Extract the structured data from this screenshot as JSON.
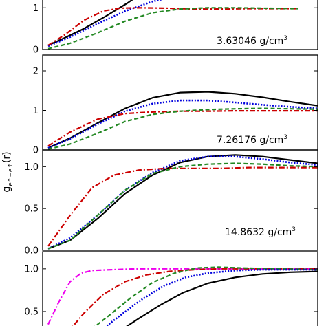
{
  "ylabel": "g",
  "ylabel_sub": "e↑−e↑",
  "ylabel_arg": "(r)",
  "colors": {
    "black": "#000000",
    "blue": "#0000dd",
    "red": "#cc0000",
    "green": "#228822",
    "magenta": "#ee00ee"
  },
  "chart_data": [
    {
      "type": "line",
      "density_label": "3.63046 g/cm",
      "density_sup": "3",
      "ylim": [
        0,
        1.35
      ],
      "xlim": [
        0,
        10
      ],
      "yticks": [
        {
          "v": 0,
          "label": "0"
        },
        {
          "v": 1,
          "label": "1"
        }
      ],
      "series": [
        {
          "color": "black",
          "style": "solid",
          "x": [
            0.2,
            0.8,
            1.5,
            2.3,
            3.1,
            3.6
          ],
          "y": [
            0.1,
            0.28,
            0.5,
            0.8,
            1.12,
            1.35
          ]
        },
        {
          "color": "blue",
          "style": "dotted",
          "x": [
            0.2,
            1.0,
            2.0,
            3.0,
            4.0,
            5.0,
            5.6
          ],
          "y": [
            0.08,
            0.3,
            0.62,
            0.92,
            1.15,
            1.3,
            1.35
          ]
        },
        {
          "color": "red",
          "style": "dashdot",
          "x": [
            0.2,
            0.8,
            1.5,
            2.2,
            2.8,
            3.5,
            4.5,
            5.5,
            6.5,
            7.5,
            8.5,
            9.3
          ],
          "y": [
            0.1,
            0.35,
            0.7,
            0.92,
            0.99,
            1.0,
            0.99,
            0.97,
            0.97,
            0.98,
            0.98,
            0.98
          ]
        },
        {
          "color": "green",
          "style": "dashed",
          "x": [
            0.2,
            1.0,
            2.0,
            3.0,
            4.0,
            5.0,
            6.0,
            7.0,
            8.0,
            9.3
          ],
          "y": [
            0.02,
            0.15,
            0.4,
            0.68,
            0.88,
            0.97,
            1.0,
            1.0,
            0.99,
            0.98
          ]
        }
      ]
    },
    {
      "type": "line",
      "density_label": "7.26176 g/cm",
      "density_sup": "3",
      "ylim": [
        0,
        2.4
      ],
      "xlim": [
        0,
        10
      ],
      "yticks": [
        {
          "v": 0,
          "label": "0"
        },
        {
          "v": 1,
          "label": "1"
        },
        {
          "v": 2,
          "label": "2"
        }
      ],
      "series": [
        {
          "color": "black",
          "style": "solid",
          "x": [
            0.2,
            1.0,
            2.0,
            3.0,
            4.0,
            5.0,
            6.0,
            7.0,
            8.0,
            9.0,
            10.0
          ],
          "y": [
            0.05,
            0.3,
            0.68,
            1.05,
            1.32,
            1.45,
            1.47,
            1.42,
            1.33,
            1.22,
            1.12
          ]
        },
        {
          "color": "blue",
          "style": "dotted",
          "x": [
            0.2,
            1.0,
            2.0,
            3.0,
            4.0,
            5.0,
            6.0,
            7.0,
            8.0,
            9.0,
            10.0
          ],
          "y": [
            0.05,
            0.28,
            0.65,
            0.98,
            1.17,
            1.25,
            1.25,
            1.2,
            1.14,
            1.09,
            1.05
          ]
        },
        {
          "color": "red",
          "style": "dashdot",
          "x": [
            0.2,
            1.0,
            2.0,
            3.0,
            4.0,
            5.0,
            6.0,
            7.0,
            8.0,
            9.0,
            10.0
          ],
          "y": [
            0.1,
            0.45,
            0.78,
            0.92,
            0.96,
            0.98,
            0.98,
            0.99,
            0.99,
            0.99,
            0.99
          ]
        },
        {
          "color": "green",
          "style": "dashed",
          "x": [
            0.2,
            1.0,
            2.0,
            3.0,
            4.0,
            5.0,
            6.0,
            7.0,
            8.0,
            9.0,
            10.0
          ],
          "y": [
            0.02,
            0.15,
            0.42,
            0.72,
            0.9,
            0.98,
            1.02,
            1.04,
            1.05,
            1.04,
            1.03
          ]
        }
      ]
    },
    {
      "type": "line",
      "density_label": "14.8632 g/cm",
      "density_sup": "3",
      "ylim": [
        0,
        1.2
      ],
      "xlim": [
        0,
        10
      ],
      "yticks": [
        {
          "v": 0,
          "label": "0.0"
        },
        {
          "v": 0.5,
          "label": "0.5"
        },
        {
          "v": 1,
          "label": "1.0"
        }
      ],
      "series": [
        {
          "color": "black",
          "style": "solid",
          "x": [
            0.2,
            1.0,
            2.0,
            3.0,
            4.0,
            5.0,
            6.0,
            7.0,
            8.0,
            9.0,
            10.0
          ],
          "y": [
            0.02,
            0.12,
            0.38,
            0.68,
            0.9,
            1.05,
            1.12,
            1.14,
            1.12,
            1.08,
            1.04
          ]
        },
        {
          "color": "blue",
          "style": "dotted",
          "x": [
            0.2,
            1.0,
            2.0,
            3.0,
            4.0,
            5.0,
            6.0,
            7.0,
            8.0,
            9.0,
            10.0
          ],
          "y": [
            0.02,
            0.15,
            0.42,
            0.72,
            0.93,
            1.07,
            1.12,
            1.12,
            1.09,
            1.05,
            1.02
          ]
        },
        {
          "color": "red",
          "style": "dashdot",
          "x": [
            0.2,
            1.0,
            1.8,
            2.6,
            3.5,
            4.5,
            5.5,
            6.5,
            7.5,
            8.5,
            10.0
          ],
          "y": [
            0.05,
            0.42,
            0.75,
            0.9,
            0.96,
            0.98,
            0.98,
            0.98,
            0.99,
            0.99,
            0.99
          ]
        },
        {
          "color": "green",
          "style": "dashed",
          "x": [
            0.2,
            1.0,
            2.0,
            3.0,
            4.0,
            5.0,
            6.0,
            7.0,
            8.0,
            9.0,
            10.0
          ],
          "y": [
            0.02,
            0.12,
            0.42,
            0.72,
            0.92,
            1.0,
            1.03,
            1.04,
            1.03,
            1.01,
            1.0
          ]
        }
      ]
    },
    {
      "type": "line",
      "density_label": "",
      "density_sup": "",
      "ylim": [
        0.25,
        1.2
      ],
      "xlim": [
        0,
        10
      ],
      "yticks": [
        {
          "v": 0.5,
          "label": "0.5"
        },
        {
          "v": 1,
          "label": "1.0"
        }
      ],
      "series": [
        {
          "color": "magenta",
          "style": "dashdot",
          "x": [
            0.2,
            0.6,
            1.0,
            1.4,
            1.8,
            2.5,
            3.5,
            5.0,
            7.0,
            10.0
          ],
          "y": [
            0.35,
            0.62,
            0.85,
            0.95,
            0.98,
            0.99,
            1.0,
            1.0,
            1.0,
            1.0
          ]
        },
        {
          "color": "red",
          "style": "dashdot",
          "x": [
            0.9,
            1.5,
            2.2,
            3.0,
            3.8,
            4.6,
            5.5,
            6.5,
            8.0,
            10.0
          ],
          "y": [
            0.25,
            0.48,
            0.7,
            0.85,
            0.93,
            0.97,
            0.99,
            1.0,
            1.0,
            1.0
          ]
        },
        {
          "color": "green",
          "style": "dashed",
          "x": [
            1.6,
            2.4,
            3.2,
            4.0,
            4.8,
            5.6,
            6.4,
            7.2,
            8.5,
            10.0
          ],
          "y": [
            0.25,
            0.45,
            0.66,
            0.84,
            0.95,
            1.01,
            1.02,
            1.01,
            1.0,
            0.99
          ]
        },
        {
          "color": "blue",
          "style": "dotted",
          "x": [
            2.0,
            2.8,
            3.6,
            4.4,
            5.2,
            6.0,
            7.0,
            8.0,
            9.0,
            10.0
          ],
          "y": [
            0.25,
            0.45,
            0.64,
            0.8,
            0.9,
            0.95,
            0.98,
            0.99,
            0.99,
            0.99
          ]
        },
        {
          "color": "black",
          "style": "solid",
          "x": [
            2.7,
            3.5,
            4.3,
            5.1,
            6.0,
            7.0,
            8.0,
            9.0,
            10.0
          ],
          "y": [
            0.25,
            0.42,
            0.58,
            0.72,
            0.83,
            0.9,
            0.94,
            0.96,
            0.97
          ]
        }
      ]
    }
  ]
}
